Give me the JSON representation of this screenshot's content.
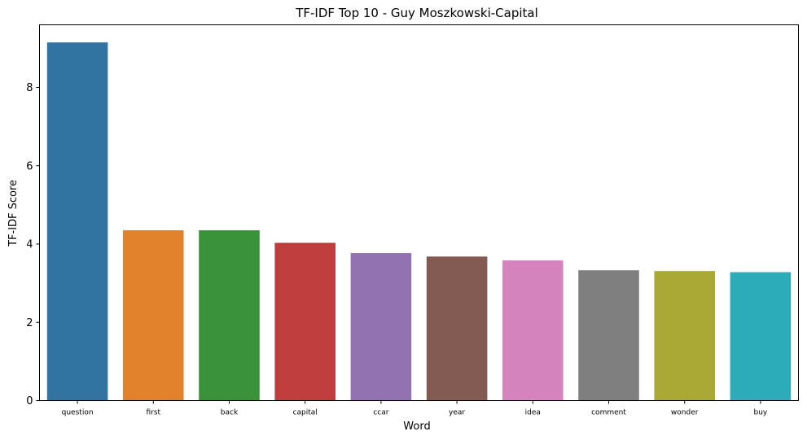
{
  "chart_data": {
    "type": "bar",
    "title": "TF-IDF Top 10 - Guy Moszkowski-Capital",
    "xlabel": "Word",
    "ylabel": "TF-IDF Score",
    "categories": [
      "question",
      "first",
      "back",
      "capital",
      "ccar",
      "year",
      "idea",
      "comment",
      "wonder",
      "buy"
    ],
    "values": [
      9.15,
      4.35,
      4.35,
      4.03,
      3.77,
      3.68,
      3.58,
      3.33,
      3.31,
      3.28
    ],
    "colors": [
      "#3274a1",
      "#e1812c",
      "#3a923a",
      "#c03d3e",
      "#9372b2",
      "#845b53",
      "#d684bd",
      "#7f7f7f",
      "#a9aa35",
      "#2eabb8"
    ],
    "yticks": [
      0,
      2,
      4,
      6,
      8
    ],
    "ylim": [
      0,
      9.6
    ],
    "grid": false,
    "legend": "none"
  }
}
